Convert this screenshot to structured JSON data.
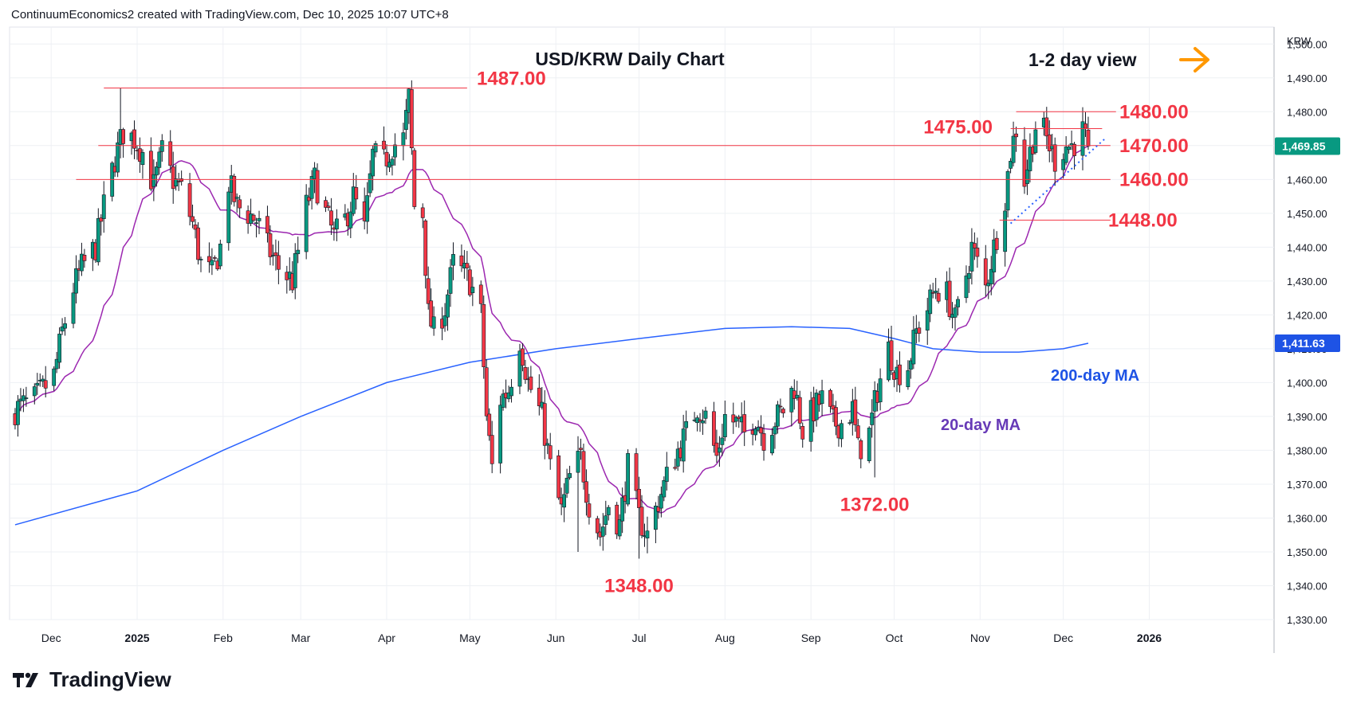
{
  "header": {
    "attribution": "ContinuumEconomics2 created with TradingView.com, Dec 10, 2025 10:07 UTC+8"
  },
  "brand": {
    "name": "TradingView"
  },
  "chart_data": {
    "type": "candlestick",
    "title": "USD/KRW Daily Chart",
    "subtitle": "1-2 day view",
    "currency": "KRW",
    "y_range": [
      1330,
      1505
    ],
    "y_ticks": [
      "1,330.00",
      "1,340.00",
      "1,350.00",
      "1,360.00",
      "1,370.00",
      "1,380.00",
      "1,390.00",
      "1,400.00",
      "1,410.00",
      "1,420.00",
      "1,430.00",
      "1,440.00",
      "1,450.00",
      "1,460.00",
      "1,470.00",
      "1,480.00",
      "1,490.00",
      "1,500.00"
    ],
    "y_tick_values": [
      1330,
      1340,
      1350,
      1360,
      1370,
      1380,
      1390,
      1400,
      1410,
      1420,
      1430,
      1440,
      1450,
      1460,
      1470,
      1480,
      1490,
      1500
    ],
    "x_ticks": [
      "Dec",
      "2025",
      "Feb",
      "Mar",
      "Apr",
      "May",
      "Jun",
      "Jul",
      "Aug",
      "Sep",
      "Oct",
      "Nov",
      "Dec",
      "2026"
    ],
    "x_tick_dates": [
      "2024-12-01",
      "2025-01-01",
      "2025-02-01",
      "2025-03-01",
      "2025-04-01",
      "2025-05-01",
      "2025-06-01",
      "2025-07-01",
      "2025-08-01",
      "2025-09-01",
      "2025-10-01",
      "2025-11-01",
      "2025-12-01",
      "2026-01-01"
    ],
    "x_range": [
      "2024-11-16",
      "2026-02-15"
    ],
    "price_badges": [
      {
        "label": "1,469.85",
        "value": 1469.85,
        "color": "#089981"
      },
      {
        "label": "1,411.63",
        "value": 1411.63,
        "color": "#1e53e5"
      }
    ],
    "levels": [
      {
        "label": "1487.00",
        "value": 1487,
        "from": "2024-12-20",
        "to": "2025-04-30"
      },
      {
        "label": "1480.00",
        "value": 1480,
        "from": "2025-11-14",
        "to": "2025-12-20"
      },
      {
        "label": "1475.00",
        "value": 1475,
        "from": "2025-11-12",
        "to": "2025-12-15"
      },
      {
        "label": "1470.00",
        "value": 1470,
        "from": "2024-12-18",
        "to": "2025-12-18"
      },
      {
        "label": "1460.00",
        "value": 1460,
        "from": "2024-12-10",
        "to": "2025-12-18"
      },
      {
        "label": "1448.00",
        "value": 1448,
        "from": "2025-11-08",
        "to": "2025-12-18"
      }
    ],
    "low_labels": [
      {
        "label": "1348.00",
        "date": "2025-07-01",
        "value": 1348
      },
      {
        "label": "1372.00",
        "date": "2025-09-24",
        "value": 1372
      }
    ],
    "ma_labels": [
      {
        "label": "20-day MA",
        "color": "#673ab7"
      },
      {
        "label": "200-day MA",
        "color": "#1e53e5"
      }
    ],
    "trendline": {
      "from": [
        "2025-11-12",
        1447
      ],
      "to": [
        "2025-12-16",
        1472
      ]
    },
    "anchors": [
      [
        "2024-11-18",
        1392
      ],
      [
        "2024-11-25",
        1395
      ],
      [
        "2024-12-02",
        1402
      ],
      [
        "2024-12-05",
        1415
      ],
      [
        "2024-12-09",
        1428
      ],
      [
        "2024-12-12",
        1434
      ],
      [
        "2024-12-17",
        1440
      ],
      [
        "2024-12-20",
        1452
      ],
      [
        "2024-12-24",
        1466
      ],
      [
        "2024-12-27",
        1474
      ],
      [
        "2024-12-31",
        1472
      ],
      [
        "2025-01-03",
        1468
      ],
      [
        "2025-01-07",
        1458
      ],
      [
        "2025-01-10",
        1468
      ],
      [
        "2025-01-14",
        1460
      ],
      [
        "2025-01-17",
        1457
      ],
      [
        "2025-01-21",
        1447
      ],
      [
        "2025-01-24",
        1435
      ],
      [
        "2025-01-28",
        1432
      ],
      [
        "2025-01-31",
        1440
      ],
      [
        "2025-02-03",
        1459
      ],
      [
        "2025-02-06",
        1452
      ],
      [
        "2025-02-10",
        1450
      ],
      [
        "2025-02-13",
        1448
      ],
      [
        "2025-02-17",
        1440
      ],
      [
        "2025-02-21",
        1434
      ],
      [
        "2025-02-26",
        1430
      ],
      [
        "2025-03-03",
        1452
      ],
      [
        "2025-03-06",
        1460
      ],
      [
        "2025-03-10",
        1450
      ],
      [
        "2025-03-13",
        1443
      ],
      [
        "2025-03-17",
        1448
      ],
      [
        "2025-03-20",
        1455
      ],
      [
        "2025-03-24",
        1445
      ],
      [
        "2025-03-27",
        1467
      ],
      [
        "2025-03-31",
        1465
      ],
      [
        "2025-04-03",
        1470
      ],
      [
        "2025-04-07",
        1472
      ],
      [
        "2025-04-09",
        1484
      ],
      [
        "2025-04-11",
        1452
      ],
      [
        "2025-04-14",
        1450
      ],
      [
        "2025-04-16",
        1420
      ],
      [
        "2025-04-18",
        1415
      ],
      [
        "2025-04-22",
        1422
      ],
      [
        "2025-04-25",
        1435
      ],
      [
        "2025-04-29",
        1432
      ],
      [
        "2025-05-01",
        1430
      ],
      [
        "2025-05-05",
        1420
      ],
      [
        "2025-05-07",
        1390
      ],
      [
        "2025-05-09",
        1375
      ],
      [
        "2025-05-12",
        1395
      ],
      [
        "2025-05-15",
        1398
      ],
      [
        "2025-05-19",
        1413
      ],
      [
        "2025-05-22",
        1400
      ],
      [
        "2025-05-27",
        1390
      ],
      [
        "2025-05-30",
        1375
      ],
      [
        "2025-06-03",
        1362
      ],
      [
        "2025-06-06",
        1372
      ],
      [
        "2025-06-10",
        1378
      ],
      [
        "2025-06-13",
        1364
      ],
      [
        "2025-06-17",
        1355
      ],
      [
        "2025-06-20",
        1364
      ],
      [
        "2025-06-24",
        1358
      ],
      [
        "2025-06-27",
        1375
      ],
      [
        "2025-07-01",
        1360
      ],
      [
        "2025-07-04",
        1355
      ],
      [
        "2025-07-08",
        1365
      ],
      [
        "2025-07-11",
        1372
      ],
      [
        "2025-07-15",
        1380
      ],
      [
        "2025-07-18",
        1385
      ],
      [
        "2025-07-22",
        1393
      ],
      [
        "2025-07-25",
        1390
      ],
      [
        "2025-07-29",
        1378
      ],
      [
        "2025-08-01",
        1390
      ],
      [
        "2025-08-05",
        1388
      ],
      [
        "2025-08-08",
        1385
      ],
      [
        "2025-08-12",
        1390
      ],
      [
        "2025-08-15",
        1384
      ],
      [
        "2025-08-19",
        1389
      ],
      [
        "2025-08-22",
        1392
      ],
      [
        "2025-08-26",
        1399
      ],
      [
        "2025-08-29",
        1386
      ],
      [
        "2025-09-02",
        1392
      ],
      [
        "2025-09-05",
        1395
      ],
      [
        "2025-09-09",
        1388
      ],
      [
        "2025-09-12",
        1388
      ],
      [
        "2025-09-16",
        1392
      ],
      [
        "2025-09-18",
        1380
      ],
      [
        "2025-09-22",
        1385
      ],
      [
        "2025-09-25",
        1398
      ],
      [
        "2025-09-29",
        1410
      ],
      [
        "2025-10-02",
        1403
      ],
      [
        "2025-10-06",
        1405
      ],
      [
        "2025-10-09",
        1415
      ],
      [
        "2025-10-13",
        1422
      ],
      [
        "2025-10-16",
        1428
      ],
      [
        "2025-10-20",
        1426
      ],
      [
        "2025-10-23",
        1418
      ],
      [
        "2025-10-27",
        1432
      ],
      [
        "2025-10-29",
        1440
      ],
      [
        "2025-11-03",
        1428
      ],
      [
        "2025-11-06",
        1440
      ],
      [
        "2025-11-10",
        1455
      ],
      [
        "2025-11-12",
        1468
      ],
      [
        "2025-11-14",
        1475
      ],
      [
        "2025-11-17",
        1460
      ],
      [
        "2025-11-19",
        1468
      ],
      [
        "2025-11-21",
        1476
      ],
      [
        "2025-11-24",
        1474
      ],
      [
        "2025-11-26",
        1470
      ],
      [
        "2025-11-28",
        1466
      ],
      [
        "2025-12-02",
        1470
      ],
      [
        "2025-12-04",
        1470
      ],
      [
        "2025-12-08",
        1474
      ],
      [
        "2025-12-10",
        1469.85
      ]
    ],
    "ma200_points": [
      [
        "2024-11-18",
        1358
      ],
      [
        "2025-01-01",
        1368
      ],
      [
        "2025-02-01",
        1380
      ],
      [
        "2025-03-01",
        1390
      ],
      [
        "2025-04-01",
        1400
      ],
      [
        "2025-05-01",
        1406
      ],
      [
        "2025-06-01",
        1410
      ],
      [
        "2025-07-01",
        1413
      ],
      [
        "2025-08-01",
        1416
      ],
      [
        "2025-08-25",
        1416.5
      ],
      [
        "2025-09-15",
        1416
      ],
      [
        "2025-10-01",
        1413
      ],
      [
        "2025-10-15",
        1410
      ],
      [
        "2025-11-01",
        1409
      ],
      [
        "2025-11-15",
        1409
      ],
      [
        "2025-12-01",
        1410
      ],
      [
        "2025-12-10",
        1411.63
      ]
    ]
  }
}
